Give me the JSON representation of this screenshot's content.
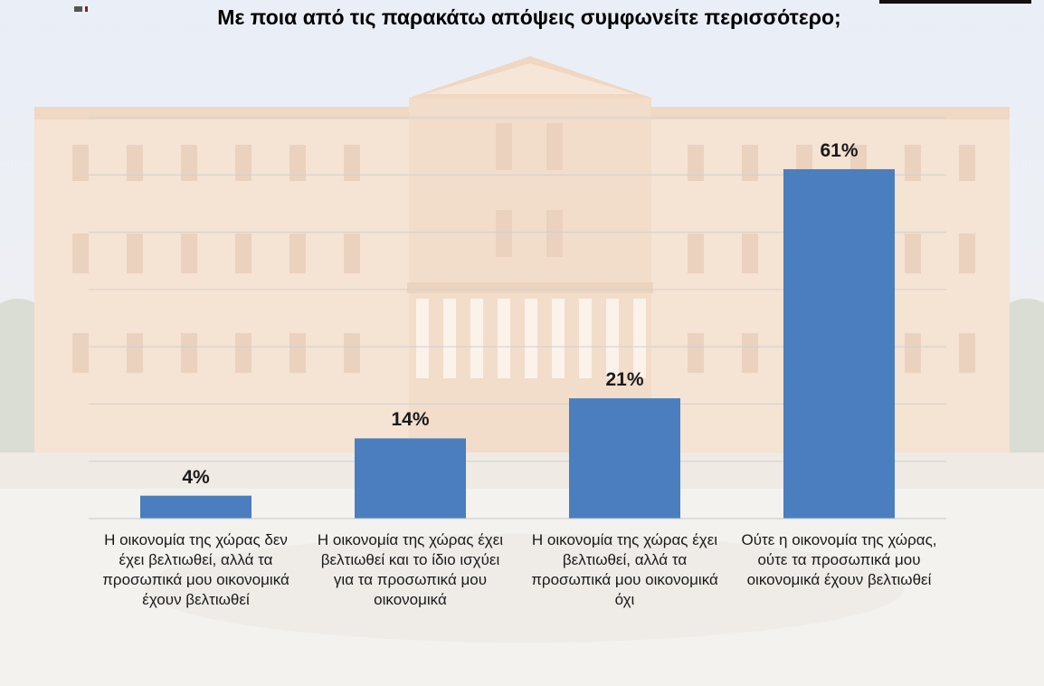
{
  "chart_data": {
    "type": "bar",
    "title": "Με ποια από τις παρακάτω απόψεις συμφωνείτε περισσότερο;",
    "categories": [
      "Η οικονομία της χώρας δεν έχει βελτιωθεί, αλλά τα προσωπικά μου οικονομικά έχουν βελτιωθεί",
      "Η οικονομία της χώρας έχει βελτιωθεί και το ίδιο ισχύει για τα προσωπικά μου οικονομικά",
      "Η οικονομία της χώρας έχει βελτιωθεί, αλλά τα προσωπικά μου οικονομικά όχι",
      "Ούτε η οικονομία της χώρας, ούτε τα προσωπικά μου οικονομικά έχουν βελτιωθεί"
    ],
    "values": [
      4,
      14,
      21,
      61
    ],
    "data_labels": [
      "4%",
      "14%",
      "21%",
      "61%"
    ],
    "ylim": [
      0,
      70
    ],
    "grid": true,
    "bar_color": "#4a7ebf",
    "xlabel": "",
    "ylabel": ""
  }
}
